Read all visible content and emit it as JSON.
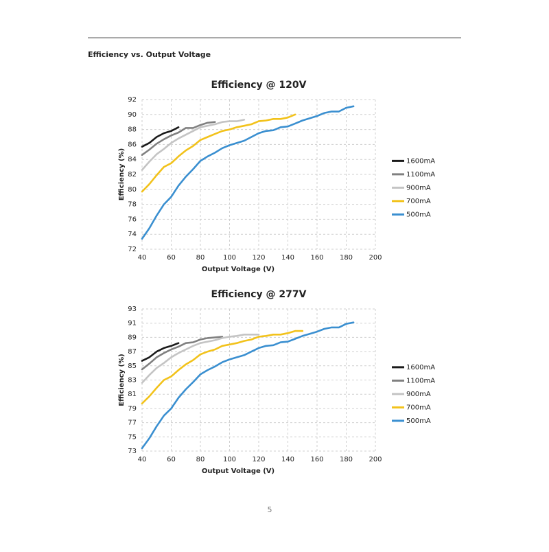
{
  "section_title": "Efficiency vs. Output Voltage",
  "page_number": "5",
  "chart_data": [
    {
      "type": "line",
      "title": "Efficiency @ 120V",
      "x_label": "Output Voltage (V)",
      "y_label": "Efficiency (%)",
      "xlim": [
        40,
        200
      ],
      "xticks": [
        40,
        60,
        80,
        100,
        120,
        140,
        160,
        180,
        200
      ],
      "ylim": [
        72,
        92
      ],
      "yticks": [
        72,
        74,
        76,
        78,
        80,
        82,
        84,
        86,
        88,
        90,
        92
      ],
      "grid": true,
      "legend": "right",
      "x": [
        40,
        45,
        50,
        55,
        60,
        65,
        70,
        75,
        80,
        85,
        90,
        95,
        100,
        105,
        110,
        115,
        120,
        125,
        130,
        135,
        140,
        145,
        150,
        155,
        160,
        165,
        170,
        175,
        180,
        185
      ],
      "series": [
        {
          "name": "1600mA",
          "color": "#1a1a1a",
          "values": [
            85.7,
            86.2,
            87.0,
            87.5,
            87.8,
            88.3,
            null,
            null,
            null,
            null,
            null,
            null,
            null,
            null,
            null,
            null,
            null,
            null,
            null,
            null,
            null,
            null,
            null,
            null,
            null,
            null,
            null,
            null,
            null,
            null
          ]
        },
        {
          "name": "1100mA",
          "color": "#808080",
          "values": [
            84.6,
            85.3,
            86.1,
            86.7,
            87.2,
            87.6,
            88.2,
            88.2,
            88.6,
            88.9,
            89.0,
            null,
            null,
            null,
            null,
            null,
            null,
            null,
            null,
            null,
            null,
            null,
            null,
            null,
            null,
            null,
            null,
            null,
            null,
            null
          ]
        },
        {
          "name": "900mA",
          "color": "#c4c4c4",
          "values": [
            82.6,
            83.7,
            84.7,
            85.4,
            86.2,
            86.8,
            87.3,
            87.8,
            88.3,
            88.5,
            88.7,
            89.0,
            89.1,
            89.1,
            89.3,
            null,
            null,
            null,
            null,
            null,
            null,
            null,
            null,
            null,
            null,
            null,
            null,
            null,
            null,
            null
          ]
        },
        {
          "name": "700mA",
          "color": "#f2c21b",
          "values": [
            79.7,
            80.7,
            81.9,
            83.0,
            83.5,
            84.4,
            85.2,
            85.8,
            86.6,
            87.0,
            87.4,
            87.8,
            88.0,
            88.3,
            88.5,
            88.7,
            89.1,
            89.2,
            89.4,
            89.4,
            89.6,
            90.0,
            null,
            null,
            null,
            null,
            null,
            null,
            null,
            null
          ]
        },
        {
          "name": "500mA",
          "color": "#3a8fd0",
          "values": [
            73.4,
            74.8,
            76.5,
            78.0,
            79.0,
            80.5,
            81.7,
            82.7,
            83.8,
            84.4,
            84.9,
            85.5,
            85.9,
            86.2,
            86.5,
            87.0,
            87.5,
            87.8,
            87.9,
            88.3,
            88.4,
            88.8,
            89.2,
            89.5,
            89.8,
            90.2,
            90.4,
            90.4,
            90.9,
            91.1
          ]
        }
      ]
    },
    {
      "type": "line",
      "title": "Efficiency @ 277V",
      "x_label": "Output Voltage (V)",
      "y_label": "Efficiency (%)",
      "xlim": [
        40,
        200
      ],
      "xticks": [
        40,
        60,
        80,
        100,
        120,
        140,
        160,
        180,
        200
      ],
      "ylim": [
        73,
        93
      ],
      "yticks": [
        73,
        75,
        77,
        79,
        81,
        83,
        85,
        87,
        89,
        91,
        93
      ],
      "grid": true,
      "legend": "right",
      "x": [
        40,
        45,
        50,
        55,
        60,
        65,
        70,
        75,
        80,
        85,
        90,
        95,
        100,
        105,
        110,
        115,
        120,
        125,
        130,
        135,
        140,
        145,
        150,
        155,
        160,
        165,
        170,
        175,
        180,
        185
      ],
      "series": [
        {
          "name": "1600mA",
          "color": "#1a1a1a",
          "values": [
            85.7,
            86.2,
            87.0,
            87.5,
            87.8,
            88.2,
            null,
            null,
            null,
            null,
            null,
            null,
            null,
            null,
            null,
            null,
            null,
            null,
            null,
            null,
            null,
            null,
            null,
            null,
            null,
            null,
            null,
            null,
            null,
            null
          ]
        },
        {
          "name": "1100mA",
          "color": "#808080",
          "values": [
            84.5,
            85.3,
            86.2,
            86.8,
            87.3,
            87.7,
            88.2,
            88.3,
            88.7,
            88.9,
            89.0,
            89.1,
            null,
            null,
            null,
            null,
            null,
            null,
            null,
            null,
            null,
            null,
            null,
            null,
            null,
            null,
            null,
            null,
            null,
            null
          ]
        },
        {
          "name": "900mA",
          "color": "#c4c4c4",
          "values": [
            82.6,
            83.7,
            84.7,
            85.4,
            86.2,
            86.8,
            87.3,
            87.8,
            88.2,
            88.4,
            88.6,
            88.9,
            89.1,
            89.2,
            89.4,
            89.4,
            89.4,
            null,
            null,
            null,
            null,
            null,
            null,
            null,
            null,
            null,
            null,
            null,
            null,
            null
          ]
        },
        {
          "name": "700mA",
          "color": "#f2c21b",
          "values": [
            79.7,
            80.7,
            81.9,
            83.0,
            83.5,
            84.4,
            85.2,
            85.8,
            86.6,
            87.0,
            87.3,
            87.8,
            88.0,
            88.2,
            88.5,
            88.7,
            89.1,
            89.2,
            89.4,
            89.4,
            89.6,
            89.9,
            89.9,
            null,
            null,
            null,
            null,
            null,
            null,
            null
          ]
        },
        {
          "name": "500mA",
          "color": "#3a8fd0",
          "values": [
            73.4,
            74.8,
            76.5,
            78.0,
            79.0,
            80.5,
            81.7,
            82.7,
            83.8,
            84.4,
            84.9,
            85.5,
            85.9,
            86.2,
            86.5,
            87.0,
            87.5,
            87.8,
            87.9,
            88.3,
            88.4,
            88.8,
            89.2,
            89.5,
            89.8,
            90.2,
            90.4,
            90.4,
            90.9,
            91.1
          ]
        }
      ]
    }
  ]
}
